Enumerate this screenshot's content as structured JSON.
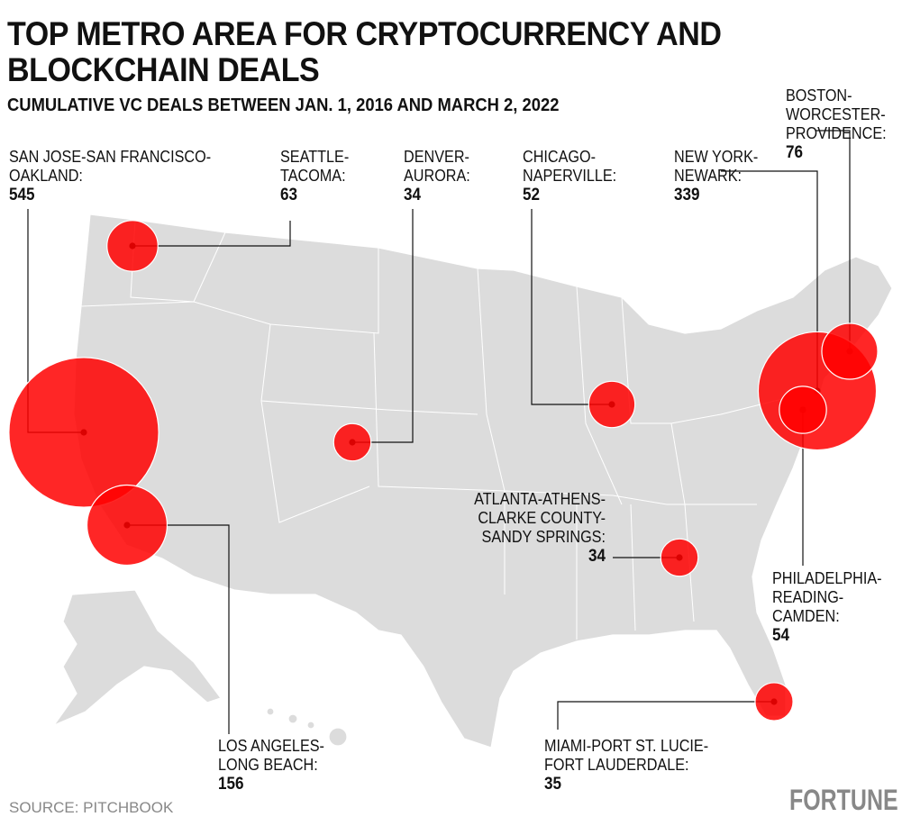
{
  "title": "TOP METRO AREA FOR CRYPTOCURRENCY AND BLOCKCHAIN DEALS",
  "subtitle": "CUMULATIVE VC DEALS BETWEEN JAN. 1, 2016 AND MARCH 2, 2022",
  "source": "SOURCE: PITCHBOOK",
  "logo": "FORTUNE",
  "colors": {
    "bubble": "#ff0000",
    "land": "#dcdcdc",
    "border": "#ffffff"
  },
  "metros": [
    {
      "id": "sj",
      "name": "SAN JOSE-SAN FRANCISCO-\nOAKLAND:",
      "value": 545
    },
    {
      "id": "la",
      "name": "LOS ANGELES-\nLONG BEACH:",
      "value": 156
    },
    {
      "id": "sea",
      "name": "SEATTLE-\nTACOMA:",
      "value": 63
    },
    {
      "id": "den",
      "name": "DENVER-\nAURORA:",
      "value": 34
    },
    {
      "id": "chi",
      "name": "CHICAGO-\nNAPERVILLE:",
      "value": 52
    },
    {
      "id": "ny",
      "name": "NEW YORK-\nNEWARK:",
      "value": 339
    },
    {
      "id": "bos",
      "name": "BOSTON-\nWORCESTER-\nPROVIDENCE:",
      "value": 76
    },
    {
      "id": "phi",
      "name": "PHILADELPHIA-\nREADING-\nCAMDEN:",
      "value": 54
    },
    {
      "id": "atl",
      "name": "ATLANTA-ATHENS-\nCLARKE COUNTY-\nSANDY SPRINGS:",
      "value": 34
    },
    {
      "id": "mia",
      "name": "MIAMI-PORT ST. LUCIE-\nFORT LAUDERDALE:",
      "value": 35
    }
  ]
}
